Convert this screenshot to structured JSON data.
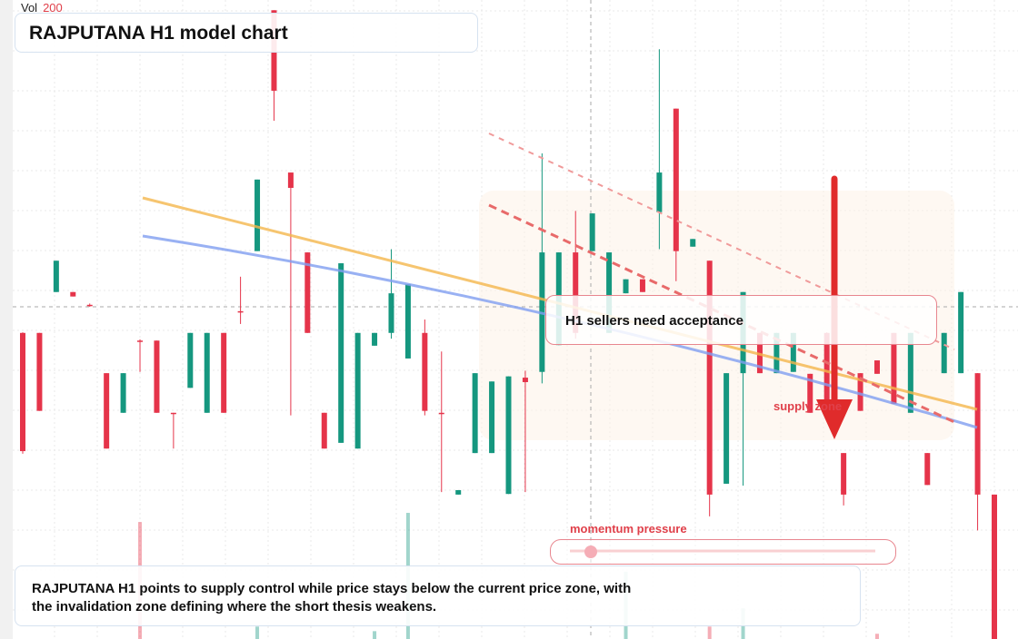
{
  "chart_data": {
    "type": "candlestick",
    "title": "RAJPUTANA H1 model chart",
    "ylim": [
      0,
      100
    ],
    "up_color": "#15977f",
    "down_color": "#e5344a",
    "open": [
      47.9,
      47.9,
      54.3,
      54.3,
      52.3,
      41.6,
      35.4,
      46.7,
      46.7,
      35.4,
      39.3,
      35.4,
      47.9,
      51.3,
      60.7,
      98.4,
      73.0,
      60.5,
      35.4,
      30.7,
      29.8,
      45.9,
      47.9,
      43.9,
      47.9,
      35.4,
      22.6,
      29.1,
      29.1,
      22.7,
      40.9,
      41.8,
      46.0,
      60.5,
      60.7,
      47.9,
      54.1,
      56.3,
      66.8,
      83.0,
      61.4,
      59.2,
      24.3,
      41.6,
      47.9,
      41.6,
      41.8,
      41.5,
      47.9,
      29.1,
      41.6,
      43.6,
      47.9,
      35.4,
      29.1,
      41.6,
      41.6,
      41.6,
      22.6
    ],
    "high": [
      48.0,
      47.9,
      59.2,
      54.3,
      52.5,
      41.6,
      41.6,
      46.9,
      46.7,
      35.4,
      47.9,
      47.9,
      47.9,
      56.7,
      71.9,
      98.4,
      73.0,
      60.5,
      35.4,
      58.8,
      47.9,
      47.9,
      61.0,
      55.5,
      50.0,
      45.0,
      23.3,
      41.6,
      40.3,
      41.1,
      42.0,
      76.0,
      60.5,
      67.0,
      66.6,
      60.5,
      56.3,
      56.3,
      92.3,
      83.0,
      62.6,
      59.2,
      41.6,
      54.3,
      47.9,
      47.9,
      47.9,
      41.5,
      48.0,
      29.1,
      41.6,
      43.6,
      47.9,
      47.9,
      29.1,
      47.9,
      54.3,
      41.6,
      22.6
    ],
    "low": [
      29.0,
      35.7,
      54.3,
      53.6,
      52.0,
      29.8,
      35.4,
      41.8,
      35.4,
      29.8,
      39.3,
      35.4,
      35.4,
      49.3,
      60.7,
      81.1,
      35.0,
      47.9,
      29.8,
      30.7,
      29.8,
      45.9,
      47.0,
      43.9,
      35.0,
      23.0,
      22.6,
      29.1,
      29.1,
      22.7,
      23.0,
      40.0,
      46.0,
      47.0,
      60.7,
      47.9,
      54.1,
      54.3,
      61.0,
      56.0,
      61.4,
      19.2,
      24.3,
      24.0,
      41.6,
      41.6,
      41.8,
      35.4,
      35.4,
      20.9,
      35.7,
      41.5,
      36.8,
      35.4,
      24.1,
      41.6,
      41.6,
      17.0,
      0
    ],
    "close": [
      29.4,
      35.7,
      59.2,
      53.6,
      52.2,
      29.8,
      41.6,
      46.6,
      35.4,
      35.3,
      47.9,
      47.9,
      35.4,
      51.2,
      71.9,
      85.8,
      70.6,
      47.9,
      29.8,
      58.8,
      47.9,
      47.9,
      54.1,
      55.5,
      35.7,
      35.3,
      23.3,
      41.6,
      40.3,
      41.1,
      40.2,
      60.5,
      60.5,
      47.9,
      66.6,
      60.5,
      56.3,
      54.3,
      73.0,
      60.7,
      62.6,
      22.6,
      41.6,
      54.3,
      41.6,
      47.9,
      47.9,
      35.4,
      35.4,
      22.6,
      35.7,
      41.5,
      36.8,
      47.9,
      24.1,
      47.9,
      54.3,
      22.6,
      0
    ],
    "volume": [
      null,
      null,
      null,
      null,
      null,
      null,
      null,
      179,
      null,
      null,
      null,
      null,
      null,
      null,
      19,
      null,
      null,
      null,
      null,
      null,
      null,
      12,
      null,
      193,
      null,
      null,
      null,
      null,
      null,
      null,
      null,
      null,
      null,
      null,
      null,
      null,
      103,
      null,
      null,
      null,
      null,
      19,
      null,
      47,
      null,
      null,
      null,
      null,
      null,
      null,
      null,
      8,
      null,
      null,
      null,
      null,
      null,
      null,
      null
    ],
    "volume_label": "Vol",
    "volume_max": 200,
    "annotations": {
      "note": "H1 sellers need acceptance",
      "zone": "supply zone",
      "momentum": "momentum pressure",
      "summary": [
        "RAJPUTANA H1 points to supply control while price stays below the current price zone, with",
        "the invalidation zone defining where the short thesis weakens."
      ]
    }
  }
}
